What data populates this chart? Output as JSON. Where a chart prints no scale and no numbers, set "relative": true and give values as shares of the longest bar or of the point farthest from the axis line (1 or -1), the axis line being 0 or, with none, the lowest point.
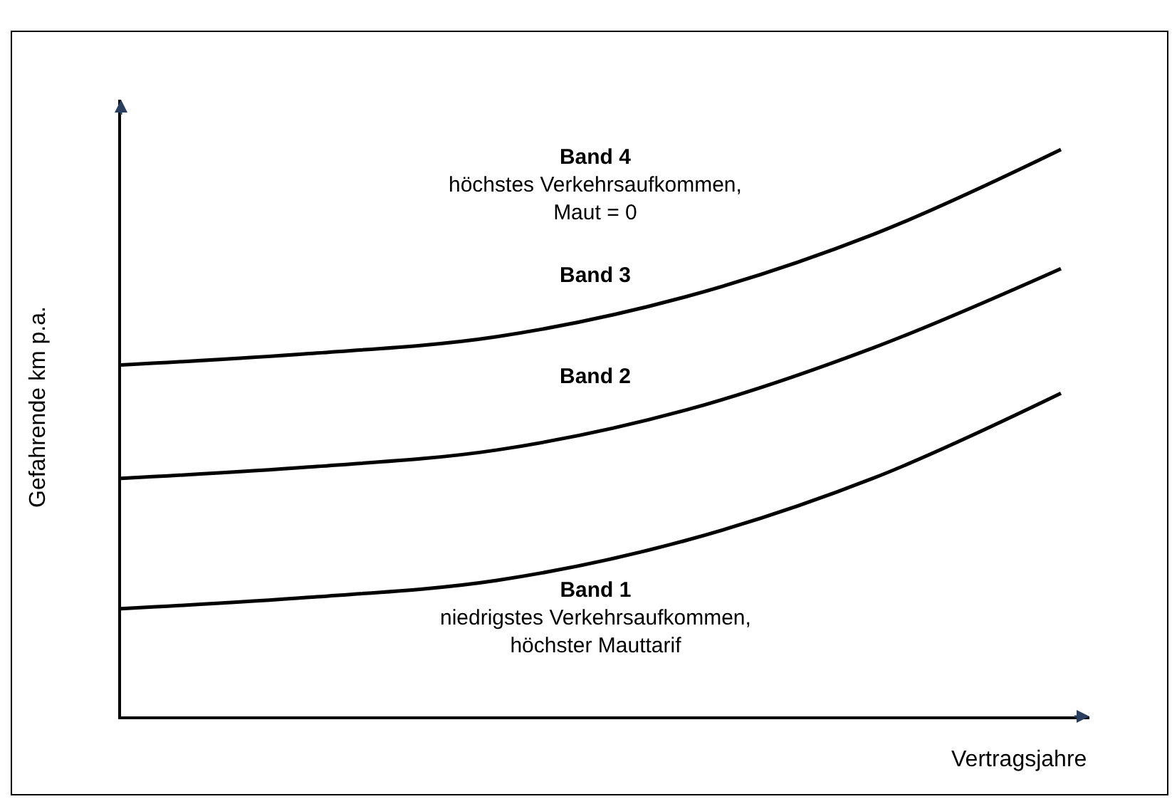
{
  "chart_data": {
    "type": "line",
    "relative": true,
    "xlabel": "Vertragsjahre",
    "ylabel": "Gefahrende km p.a.",
    "categories": [
      null,
      null,
      null,
      null,
      null,
      null
    ],
    "series": [
      {
        "color": "#000000",
        "values": [
          0.19,
          0.21,
          0.24,
          0.31,
          0.42,
          0.57
        ]
      },
      {
        "color": "#000000",
        "values": [
          0.42,
          0.44,
          0.47,
          0.54,
          0.65,
          0.79
        ]
      },
      {
        "color": "#000000",
        "values": [
          0.62,
          0.64,
          0.67,
          0.74,
          0.85,
          1.0
        ]
      }
    ],
    "annotations": [
      "Band 4\nhöchstes Verkehrsaufkommen,\nMaut = 0",
      "Band 3",
      "Band 2",
      "Band 1\nniedrigstes Verkehrsaufkommen,\nhöchster Mauttarif"
    ],
    "marker": "none",
    "line_style": "solid"
  }
}
